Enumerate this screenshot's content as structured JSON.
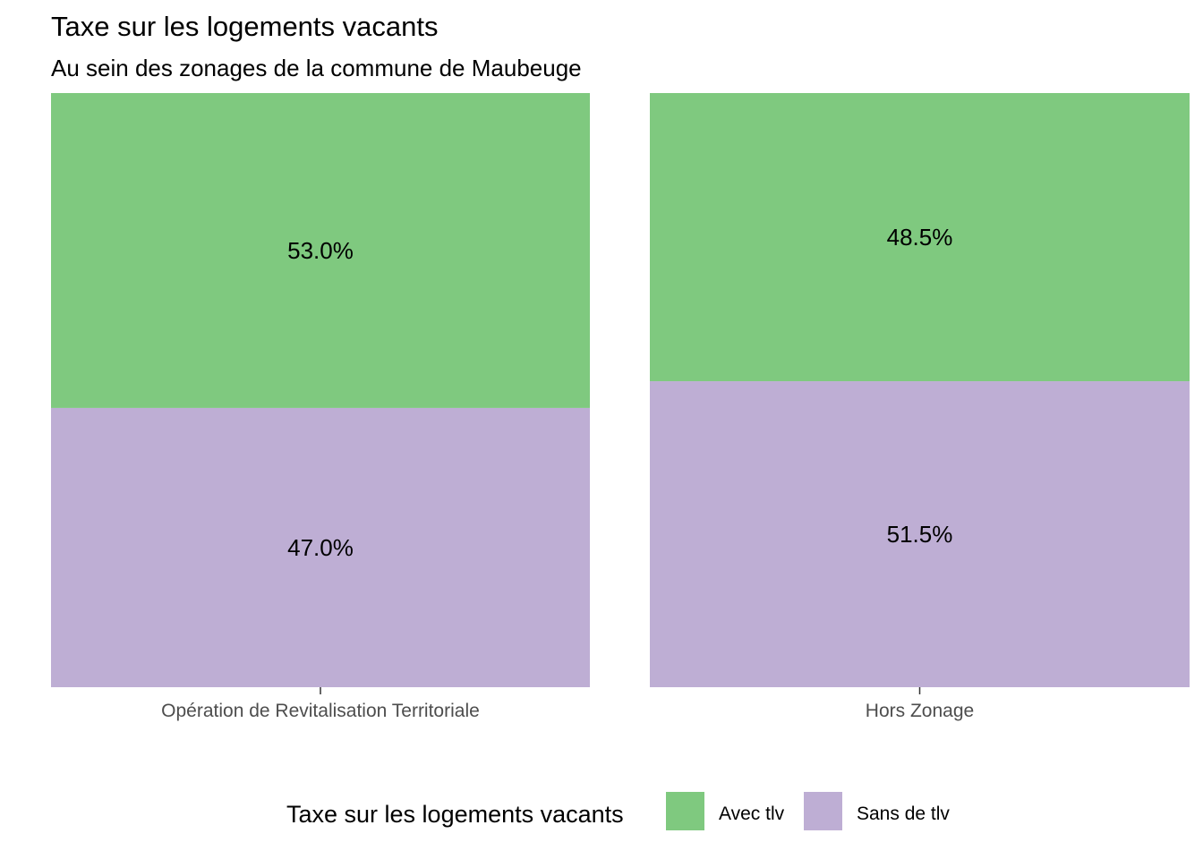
{
  "chart_data": {
    "type": "bar",
    "stacked": true,
    "title": "Taxe sur les logements vacants",
    "subtitle": "Au sein des zonages de la commune de Maubeuge",
    "categories": [
      "Opération de Revitalisation Territoriale",
      "Hors Zonage"
    ],
    "series": [
      {
        "name": "Avec tlv",
        "values": [
          53.0,
          48.5
        ],
        "labels": [
          "53.0%",
          "48.5%"
        ],
        "color": "#7fc97f"
      },
      {
        "name": "Sans de tlv",
        "values": [
          47.0,
          51.5
        ],
        "labels": [
          "47.0%",
          "51.5%"
        ],
        "color": "#beaed4"
      }
    ],
    "ylim": [
      0,
      100
    ],
    "grid": false,
    "legend": {
      "title": "Taxe sur les logements vacants",
      "position": "bottom"
    }
  }
}
